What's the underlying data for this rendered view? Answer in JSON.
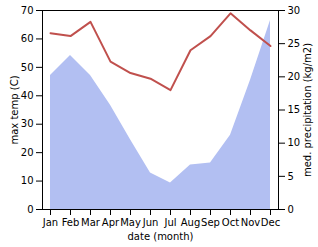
{
  "chart_data": {
    "type": "line",
    "x_label": "date (month)",
    "categories": [
      "Jan",
      "Feb",
      "Mar",
      "Apr",
      "May",
      "Jun",
      "Jul",
      "Aug",
      "Sep",
      "Oct",
      "Nov",
      "Dec"
    ],
    "ylim": [
      0,
      70
    ],
    "yticks": [
      0,
      10,
      20,
      30,
      40,
      50,
      60,
      70
    ],
    "y2lim": [
      0,
      30
    ],
    "y2ticks": [
      0,
      5,
      10,
      15,
      20,
      25,
      30
    ],
    "grid": false,
    "series": [
      {
        "name": "med. precipitation (kg/m2)",
        "type": "area",
        "axis": "y2",
        "color": "#b2bff2",
        "values": [
          20.2,
          23.2,
          20.2,
          15.7,
          10.5,
          5.5,
          4,
          6.7,
          7,
          11.2,
          19.5,
          28.5
        ]
      },
      {
        "name": "max temp (C)",
        "type": "line",
        "axis": "y",
        "color": "#c0504d",
        "values": [
          62,
          61,
          66,
          52,
          48,
          46,
          42,
          56,
          61,
          69,
          63,
          57.5
        ]
      }
    ]
  }
}
